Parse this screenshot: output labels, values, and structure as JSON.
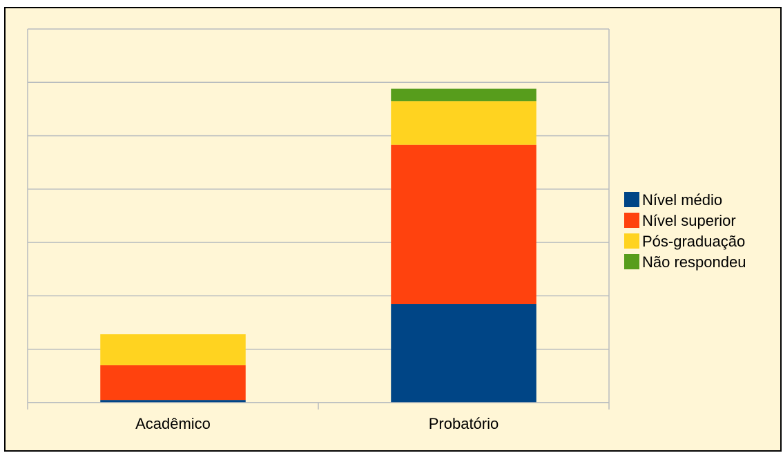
{
  "colors": {
    "background": "#fff6d6",
    "grid": "#b8bcbf",
    "axis": "#b8bcbf"
  },
  "chart_data": {
    "type": "bar",
    "stacked": true,
    "categories": [
      "Acadêmico",
      "Probatório"
    ],
    "series": [
      {
        "name": "Nível médio",
        "color": "#004586",
        "values": [
          0.5,
          18.5
        ]
      },
      {
        "name": "Nível superior",
        "color": "#ff420e",
        "values": [
          6.5,
          29.8
        ]
      },
      {
        "name": "Pós-graduação",
        "color": "#ffd320",
        "values": [
          5.8,
          8.2
        ]
      },
      {
        "name": "Não respondeu",
        "color": "#579d1c",
        "values": [
          0,
          2.3
        ]
      }
    ],
    "ylim": [
      0,
      70
    ],
    "ytick_step": 10,
    "yticks_labeled": false,
    "grid": true,
    "legend": "right"
  }
}
